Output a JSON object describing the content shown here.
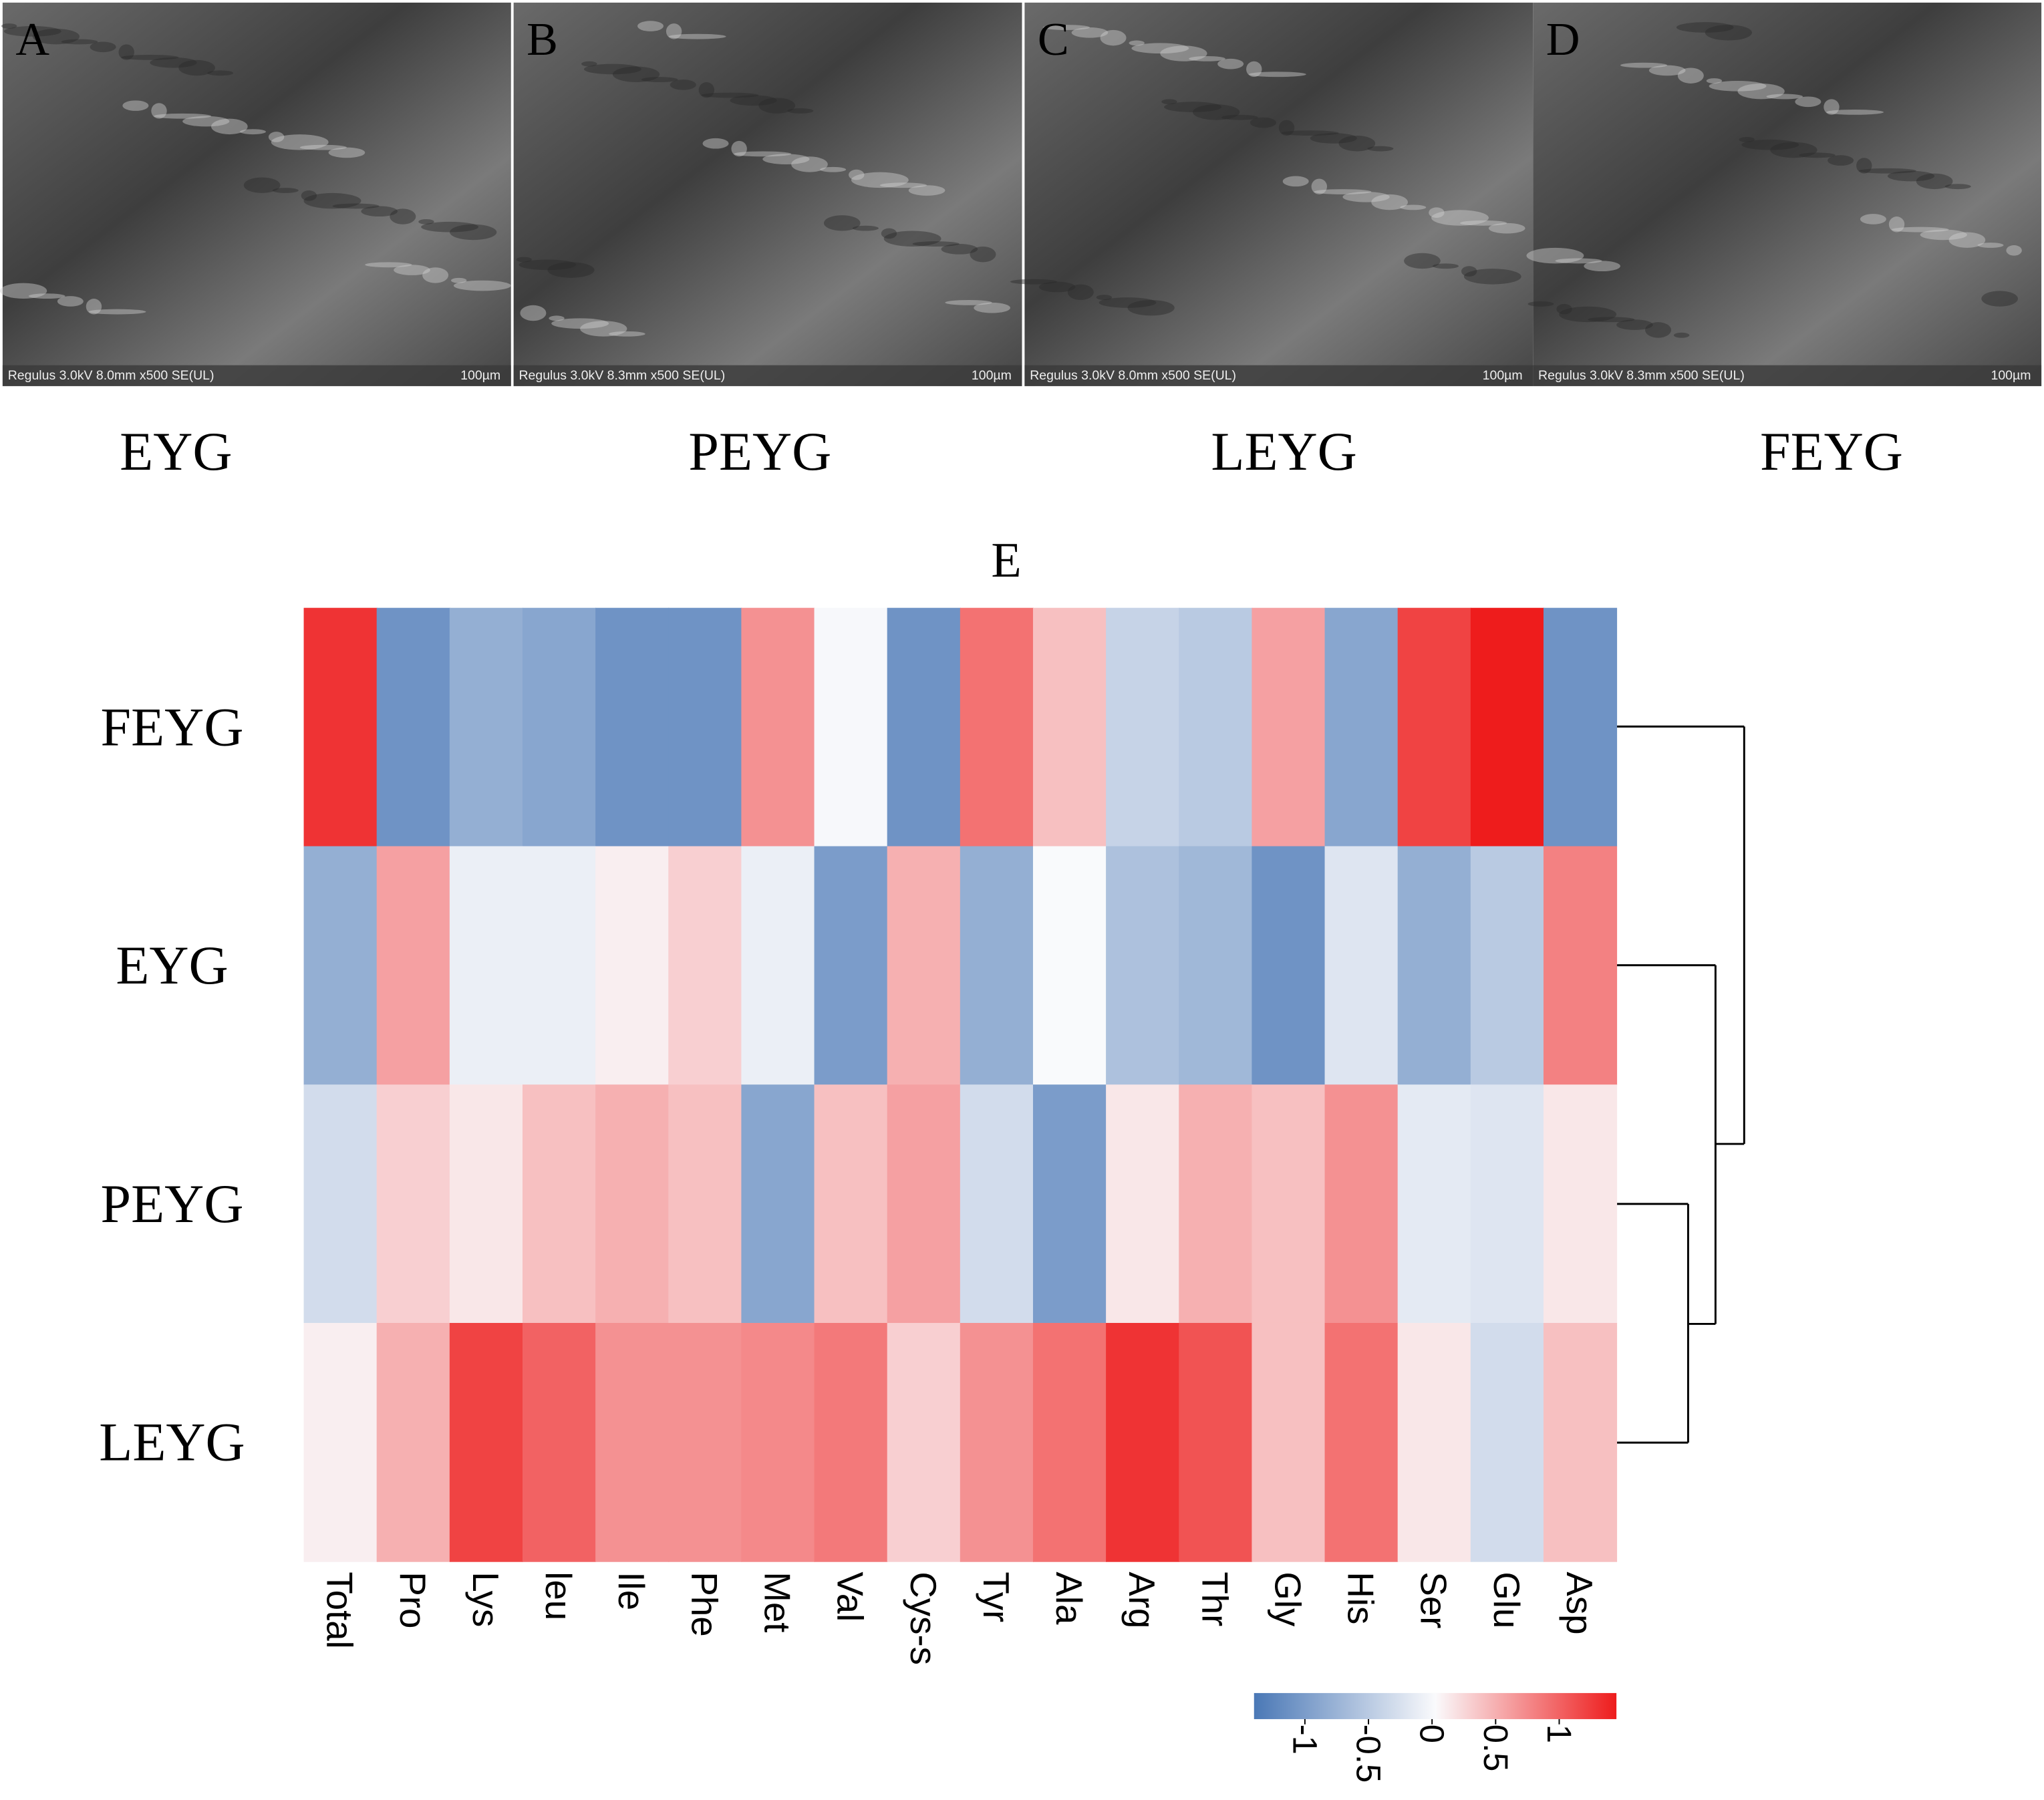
{
  "panels": [
    {
      "letter": "A",
      "caption": "Regulus 3.0kV 8.0mm x500 SE(UL)",
      "scale": "100µm",
      "label": "EYG"
    },
    {
      "letter": "B",
      "caption": "Regulus 3.0kV 8.3mm x500 SE(UL)",
      "scale": "100µm",
      "label": "PEYG"
    },
    {
      "letter": "C",
      "caption": "Regulus 3.0kV 8.0mm x500 SE(UL)",
      "scale": "100µm",
      "label": "LEYG"
    },
    {
      "letter": "D",
      "caption": "Regulus 3.0kV 8.3mm x500 SE(UL)",
      "scale": "100µm",
      "label": "FEYG"
    }
  ],
  "chart_data": {
    "type": "heatmap",
    "title": "E",
    "categories": [
      "Total",
      "Pro",
      "Lys",
      "leu",
      "Ile",
      "Phe",
      "Met",
      "Val",
      "Cys-s",
      "Tyr",
      "Ala",
      "Arg",
      "Thr",
      "Gly",
      "His",
      "Ser",
      "Glu",
      "Asp"
    ],
    "rows": [
      "FEYG",
      "EYG",
      "PEYG",
      "LEYG"
    ],
    "values": [
      [
        1.3,
        -1.1,
        -0.8,
        -0.9,
        -1.1,
        -1.1,
        0.7,
        0,
        -1.1,
        0.9,
        0.4,
        -0.4,
        -0.5,
        0.6,
        -0.9,
        1.2,
        1.5,
        -1.1
      ],
      [
        -0.8,
        0.6,
        -0.1,
        -0.1,
        0.1,
        0.3,
        -0.1,
        -1.0,
        0.5,
        -0.8,
        0.02,
        -0.6,
        -0.7,
        -1.1,
        -0.2,
        -0.8,
        -0.5,
        0.8
      ],
      [
        -0.3,
        0.3,
        0.15,
        0.4,
        0.5,
        0.4,
        -0.9,
        0.4,
        0.6,
        -0.3,
        -1.0,
        0.15,
        0.5,
        0.4,
        0.7,
        -0.15,
        -0.2,
        0.15
      ],
      [
        0.1,
        0.5,
        1.2,
        1.0,
        0.7,
        0.7,
        0.75,
        0.85,
        0.3,
        0.7,
        0.9,
        1.3,
        1.1,
        0.4,
        0.9,
        0.15,
        -0.3,
        0.4
      ]
    ],
    "colorscale": [
      "#4a78b6",
      "#fafafc",
      "#ee1c1c"
    ],
    "zlim": [
      -1.4,
      1.45
    ],
    "zticks": [
      -1,
      -0.5,
      0,
      0.5,
      1
    ]
  }
}
